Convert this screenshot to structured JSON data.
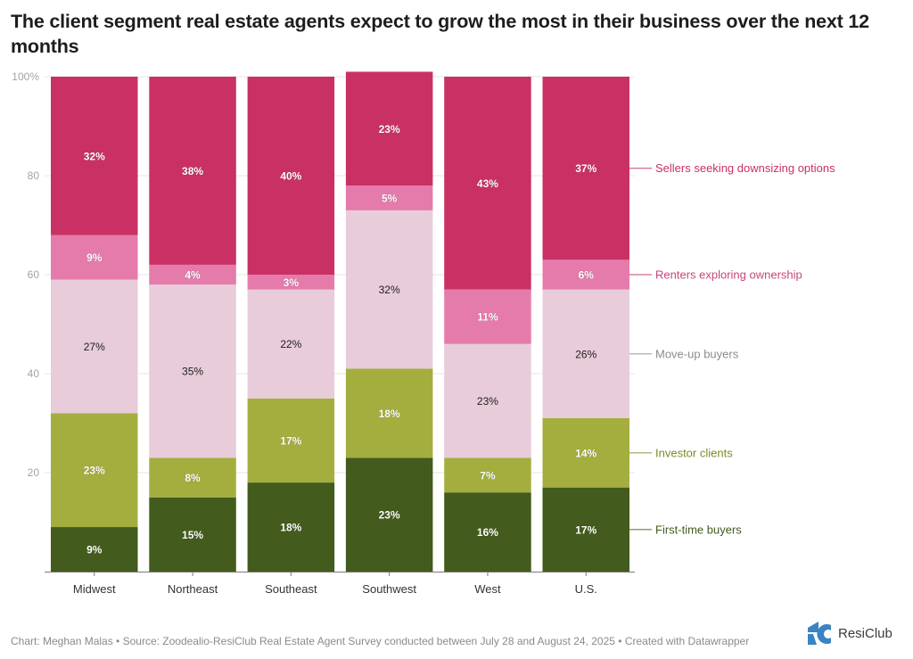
{
  "header": {
    "title": "The client segment real estate agents expect to grow the most in their business over the next 12 months"
  },
  "footer": {
    "credit": "Chart: Meghan Malas • Source: Zoodealio-ResiClub Real Estate Agent Survey conducted between July 28 and August 24, 2025 • Created with Datawrapper"
  },
  "logo": {
    "icon": "resiclub-logo-icon",
    "text": "ResiClub",
    "color": "#3a84c4"
  },
  "chart_data": {
    "type": "bar",
    "stacked": true,
    "orientation": "vertical",
    "title": "The client segment real estate agents expect to grow the most in their business over the next 12 months",
    "xlabel": "",
    "ylabel": "",
    "ylim": [
      0,
      100
    ],
    "grid": true,
    "yticks": [
      20,
      40,
      60,
      80,
      100
    ],
    "ytick_labels": [
      "20",
      "40",
      "60",
      "80",
      "100%"
    ],
    "legend_placement": "right (inline labels)",
    "categories": [
      "Midwest",
      "Northeast",
      "Southeast",
      "Southwest",
      "West",
      "U.S."
    ],
    "series": [
      {
        "name": "First-time buyers",
        "color": "#435b1c",
        "label_color": "#ffffff",
        "legend_color": "#435b1c",
        "values": [
          9,
          15,
          18,
          23,
          16,
          17
        ]
      },
      {
        "name": "Investor clients",
        "color": "#a4ae3f",
        "label_color": "#ffffff",
        "legend_color": "#7d8b25",
        "values": [
          23,
          8,
          17,
          18,
          7,
          14
        ]
      },
      {
        "name": "Move-up buyers",
        "color": "#e8ccda",
        "label_color": "#1d1d1d",
        "legend_color": "#8c8c8c",
        "values": [
          27,
          35,
          22,
          32,
          23,
          26
        ]
      },
      {
        "name": "Renters exploring ownership",
        "color": "#e57bab",
        "label_color": "#ffffff",
        "legend_color": "#c5467a",
        "values": [
          9,
          4,
          3,
          5,
          11,
          6
        ]
      },
      {
        "name": "Sellers seeking downsizing options",
        "color": "#c93164",
        "label_color": "#ffffff",
        "legend_color": "#c93164",
        "values": [
          32,
          38,
          40,
          23,
          43,
          37
        ]
      }
    ],
    "value_suffix": "%"
  }
}
